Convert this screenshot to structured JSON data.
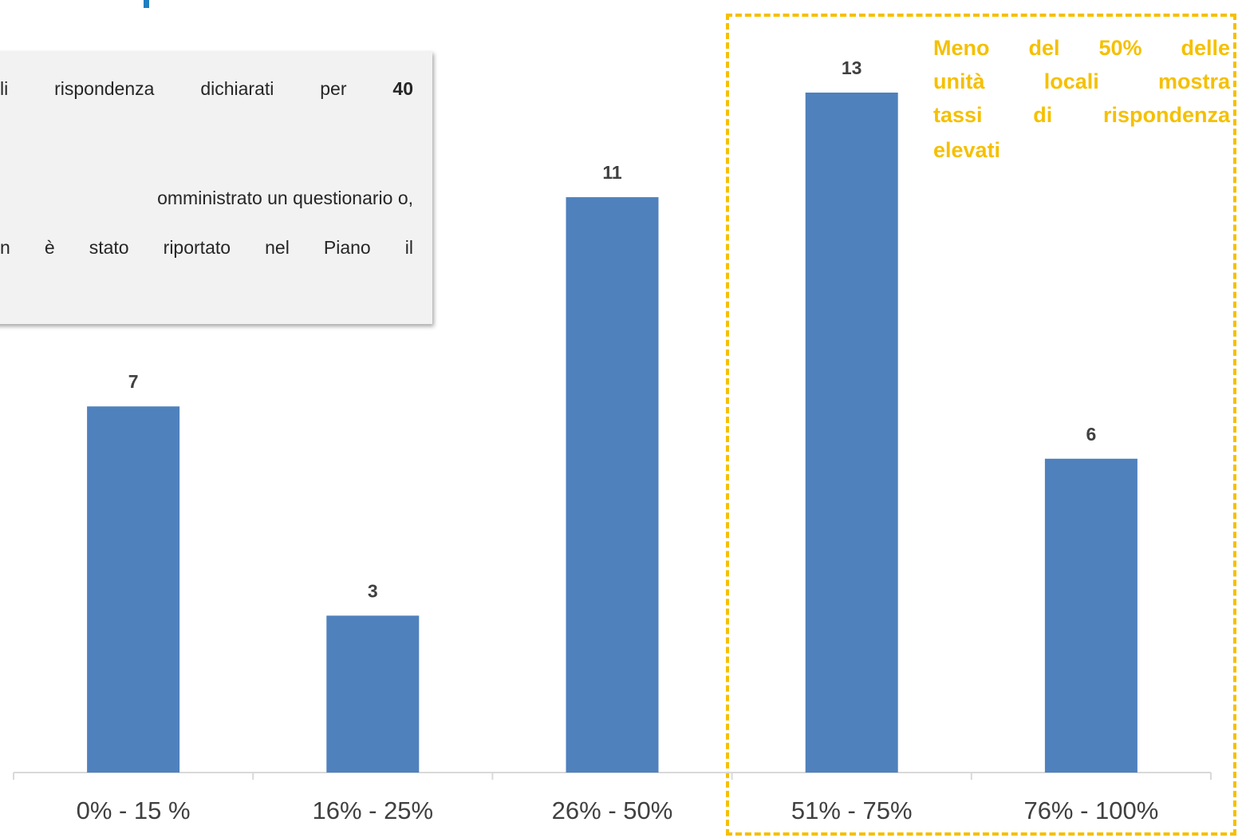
{
  "note": {
    "line1_text": "li rispondenza dichiarati per ",
    "line1_bold": "40",
    "line2": "omministrato un questionario o,",
    "line3": "n è stato riportato nel Piano il"
  },
  "callout": {
    "lines": [
      "Meno del 50% delle",
      "unità locali mostra",
      "tassi di rispondenza",
      "elevati"
    ],
    "color": "#f5c000"
  },
  "chart_data": {
    "type": "bar",
    "categories": [
      "0% - 15 %",
      "16% - 25%",
      "26% - 50%",
      "51% - 75%",
      "76% - 100%"
    ],
    "values": [
      7,
      3,
      11,
      13,
      6
    ],
    "title": "",
    "xlabel": "",
    "ylabel": "",
    "ylim": [
      0,
      13
    ],
    "grid": false,
    "bar_color": "#4f81bd",
    "data_labels": true
  }
}
